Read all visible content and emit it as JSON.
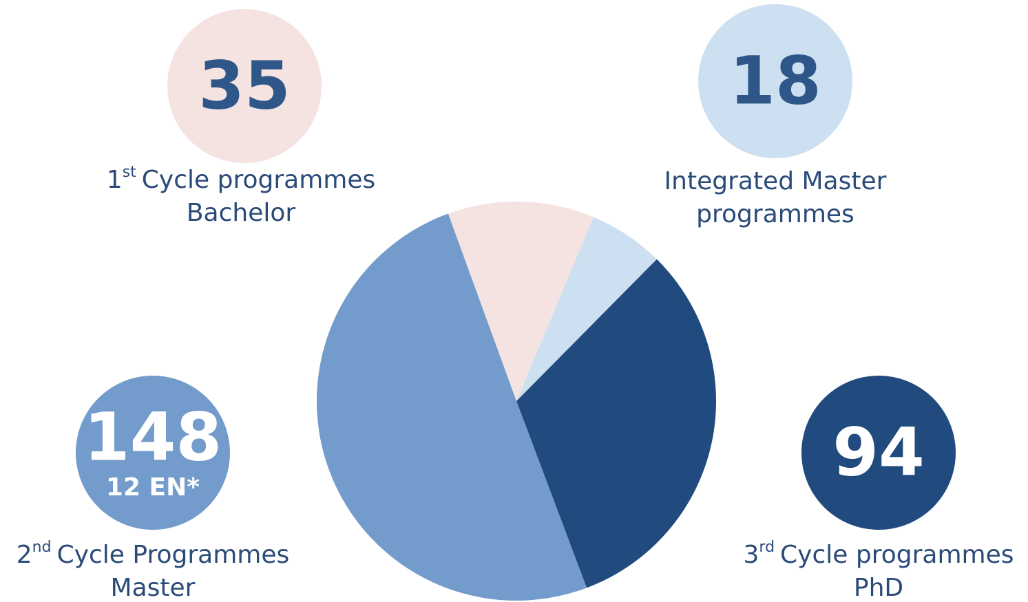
{
  "chart_data": {
    "type": "pie",
    "categories": [
      {
        "ordinal": "1",
        "suffix": "st",
        "text": "Cycle programmes",
        "line2": "Bachelor"
      },
      {
        "text": "Integrated Master",
        "line2": "programmes"
      },
      {
        "ordinal": "3",
        "suffix": "rd",
        "text": "Cycle programmes",
        "line2": "PhD"
      },
      {
        "ordinal": "2",
        "suffix": "nd",
        "text": "Cycle Programmes",
        "line2": "Master"
      }
    ],
    "values": [
      35,
      18,
      94,
      148
    ],
    "colors": [
      "#f5e3e2",
      "#cde0f1",
      "#214a7e",
      "#739bcb"
    ],
    "number_colors": [
      "#2f5688",
      "#2f5688",
      "#ffffff",
      "#ffffff"
    ],
    "annotations": [
      {
        "category": 3,
        "text": "12 EN*"
      }
    ]
  }
}
